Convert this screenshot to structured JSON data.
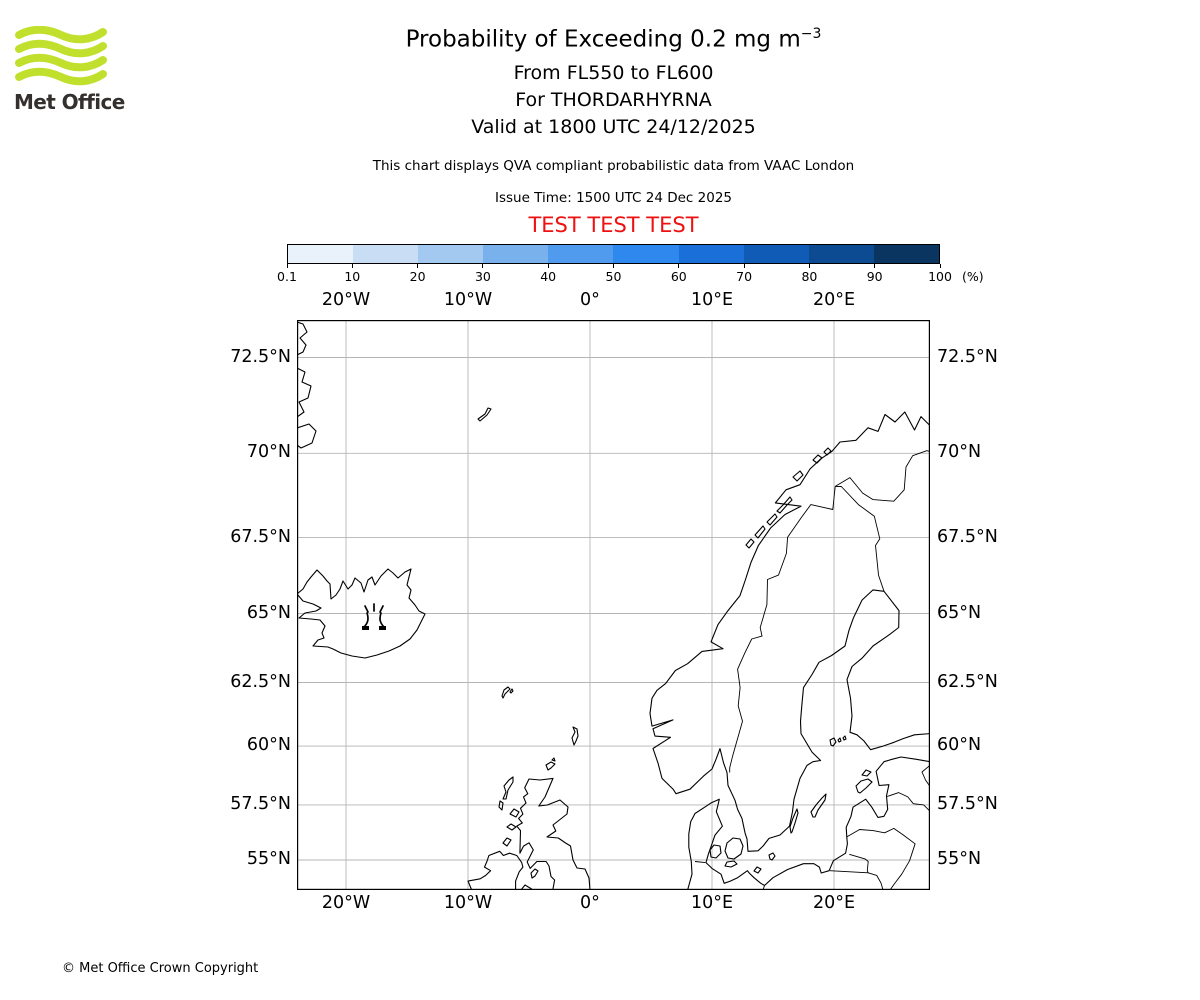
{
  "logo": {
    "brand": "Met Office",
    "green": "#c1e02e"
  },
  "header": {
    "title_main": "Probability of Exceeding 0.2 mg m",
    "title_sup": "−3",
    "subtitle1": "From FL550 to FL600",
    "subtitle2": "For THORDARHYRNA",
    "subtitle3": "Valid at 1800 UTC 24/12/2025",
    "description": "This chart displays QVA compliant probabilistic data from VAAC London",
    "issue_time": "Issue Time: 1500 UTC 24 Dec 2025",
    "test_banner": "TEST TEST TEST",
    "test_color": "#ee1111"
  },
  "colorbar": {
    "tick_labels": [
      "0.1",
      "10",
      "20",
      "30",
      "40",
      "50",
      "60",
      "70",
      "80",
      "90",
      "100"
    ],
    "unit_label": "(%)",
    "colors": [
      "#e9f2fb",
      "#c9def5",
      "#a3c9f0",
      "#79b1ec",
      "#509bee",
      "#2e88ee",
      "#1b6fd8",
      "#105bb5",
      "#0c4a92",
      "#0a3560"
    ]
  },
  "map": {
    "lon_labels": [
      "20°W",
      "10°W",
      "0°",
      "10°E",
      "20°E"
    ],
    "lat_labels": [
      "72.5°N",
      "70°N",
      "67.5°N",
      "65°N",
      "62.5°N",
      "60°N",
      "57.5°N",
      "55°N"
    ],
    "marker_volcano": "THORDARHYRNA"
  },
  "footer": {
    "copyright": "© Met Office Crown Copyright"
  }
}
